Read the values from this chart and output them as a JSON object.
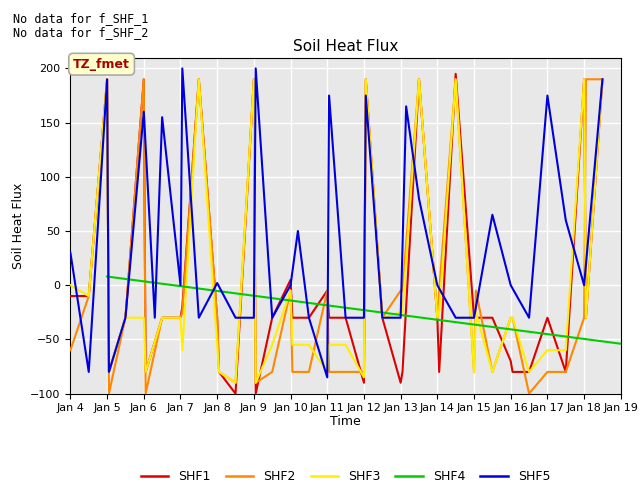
{
  "title": "Soil Heat Flux",
  "ylabel": "Soil Heat Flux",
  "xlabel": "Time",
  "text_no_data": [
    "No data for f_SHF_1",
    "No data for f_SHF_2"
  ],
  "legend_label": "TZ_fmet",
  "legend_box_color": "#ffffcc",
  "legend_box_edge": "#aaaaaa",
  "ylim": [
    -100,
    210
  ],
  "yticks": [
    -100,
    -50,
    0,
    50,
    100,
    150,
    200
  ],
  "background_color": "#e8e8e8",
  "grid_color": "#ffffff",
  "series_order": [
    "SHF1",
    "SHF2",
    "SHF3",
    "SHF4",
    "SHF5"
  ],
  "series": {
    "SHF1": {
      "color": "#dd0000",
      "x": [
        4.0,
        4.5,
        5.0,
        5.05,
        5.5,
        6.0,
        6.05,
        6.5,
        7.0,
        7.05,
        7.5,
        8.0,
        8.05,
        8.5,
        9.0,
        9.05,
        9.5,
        10.0,
        10.05,
        10.5,
        11.0,
        11.05,
        11.5,
        12.0,
        12.05,
        12.5,
        13.0,
        13.05,
        13.5,
        14.0,
        14.05,
        14.5,
        15.0,
        15.05,
        15.5,
        16.0,
        16.05,
        16.5,
        17.0,
        17.5,
        18.0,
        18.05,
        18.5
      ],
      "y": [
        -10,
        -10,
        190,
        -80,
        -30,
        190,
        -80,
        -30,
        -30,
        -20,
        190,
        -30,
        -80,
        -100,
        190,
        -100,
        -30,
        5,
        -30,
        -30,
        -5,
        -30,
        -30,
        -90,
        190,
        -30,
        -90,
        -80,
        190,
        -30,
        -80,
        195,
        -30,
        -30,
        -30,
        -70,
        -80,
        -80,
        -30,
        -80,
        190,
        -30,
        190
      ]
    },
    "SHF2": {
      "color": "#ff8800",
      "x": [
        4.0,
        4.5,
        5.0,
        5.05,
        5.5,
        6.0,
        6.05,
        6.5,
        7.0,
        7.05,
        7.5,
        8.0,
        8.05,
        8.5,
        9.0,
        9.05,
        9.5,
        10.0,
        10.05,
        10.5,
        11.0,
        11.05,
        11.5,
        12.0,
        12.05,
        12.5,
        13.0,
        13.05,
        13.5,
        14.0,
        14.05,
        14.5,
        15.0,
        15.05,
        15.5,
        16.0,
        16.05,
        16.5,
        17.0,
        17.5,
        18.0,
        18.05,
        18.5
      ],
      "y": [
        -60,
        -10,
        190,
        -100,
        -30,
        190,
        -100,
        -30,
        -30,
        -25,
        190,
        -30,
        -80,
        -90,
        190,
        -90,
        -80,
        -5,
        -80,
        -80,
        -5,
        -80,
        -80,
        -80,
        190,
        -30,
        -5,
        -5,
        190,
        -30,
        -5,
        190,
        -80,
        -5,
        -80,
        -30,
        -30,
        -100,
        -80,
        -80,
        -30,
        190,
        190
      ]
    },
    "SHF3": {
      "color": "#ffee00",
      "x": [
        4.0,
        4.5,
        5.0,
        5.05,
        5.5,
        6.0,
        6.05,
        6.5,
        7.0,
        7.05,
        7.5,
        8.0,
        8.05,
        8.5,
        9.0,
        9.05,
        9.5,
        10.0,
        10.05,
        10.5,
        11.0,
        11.05,
        11.5,
        12.0,
        12.05,
        12.5,
        13.0,
        13.05,
        13.5,
        14.0,
        14.05,
        14.5,
        15.0,
        15.05,
        15.5,
        16.0,
        16.05,
        16.5,
        17.0,
        17.5,
        18.0,
        18.05,
        18.5
      ],
      "y": [
        0,
        -10,
        190,
        -80,
        -30,
        -30,
        -80,
        -30,
        -30,
        -60,
        190,
        -55,
        -80,
        -90,
        190,
        -90,
        -55,
        -5,
        -55,
        -55,
        -80,
        -55,
        -55,
        -85,
        190,
        -30,
        -25,
        -25,
        190,
        -30,
        -25,
        190,
        -80,
        -25,
        -80,
        -30,
        -30,
        -80,
        -60,
        -60,
        190,
        -30,
        190
      ]
    },
    "SHF4": {
      "color": "#00cc00",
      "x": [
        5.0,
        19.0
      ],
      "y": [
        8,
        -54
      ]
    },
    "SHF5": {
      "color": "#0000dd",
      "x": [
        4.0,
        4.5,
        5.0,
        5.05,
        5.5,
        6.0,
        6.3,
        6.5,
        7.0,
        7.05,
        7.5,
        8.0,
        8.5,
        9.0,
        9.05,
        9.5,
        10.0,
        10.2,
        10.5,
        11.0,
        11.05,
        11.5,
        12.0,
        12.05,
        12.5,
        13.0,
        13.15,
        13.5,
        14.0,
        14.5,
        15.0,
        15.5,
        16.0,
        16.5,
        17.0,
        17.5,
        18.0,
        18.5
      ],
      "y": [
        30,
        -80,
        190,
        -80,
        -30,
        160,
        -30,
        155,
        0,
        200,
        -30,
        2,
        -30,
        -30,
        200,
        -30,
        0,
        50,
        -30,
        -85,
        175,
        -30,
        -30,
        175,
        -30,
        -30,
        165,
        80,
        0,
        -30,
        -30,
        65,
        0,
        -30,
        175,
        60,
        0,
        190
      ]
    }
  },
  "xticks": [
    4,
    5,
    6,
    7,
    8,
    9,
    10,
    11,
    12,
    13,
    14,
    15,
    16,
    17,
    18,
    19
  ],
  "xtick_labels": [
    "Jan 4",
    "Jan 5",
    "Jan 6",
    "Jan 7",
    "Jan 8",
    "Jan 9",
    "Jan 10",
    "Jan 11",
    "Jan 12",
    "Jan 13",
    "Jan 14",
    "Jan 15",
    "Jan 16",
    "Jan 17",
    "Jan 18",
    "Jan 19"
  ],
  "legend_colors": [
    "#dd0000",
    "#ff8800",
    "#ffee00",
    "#00cc00",
    "#0000dd"
  ],
  "legend_labels": [
    "SHF1",
    "SHF2",
    "SHF3",
    "SHF4",
    "SHF5"
  ]
}
